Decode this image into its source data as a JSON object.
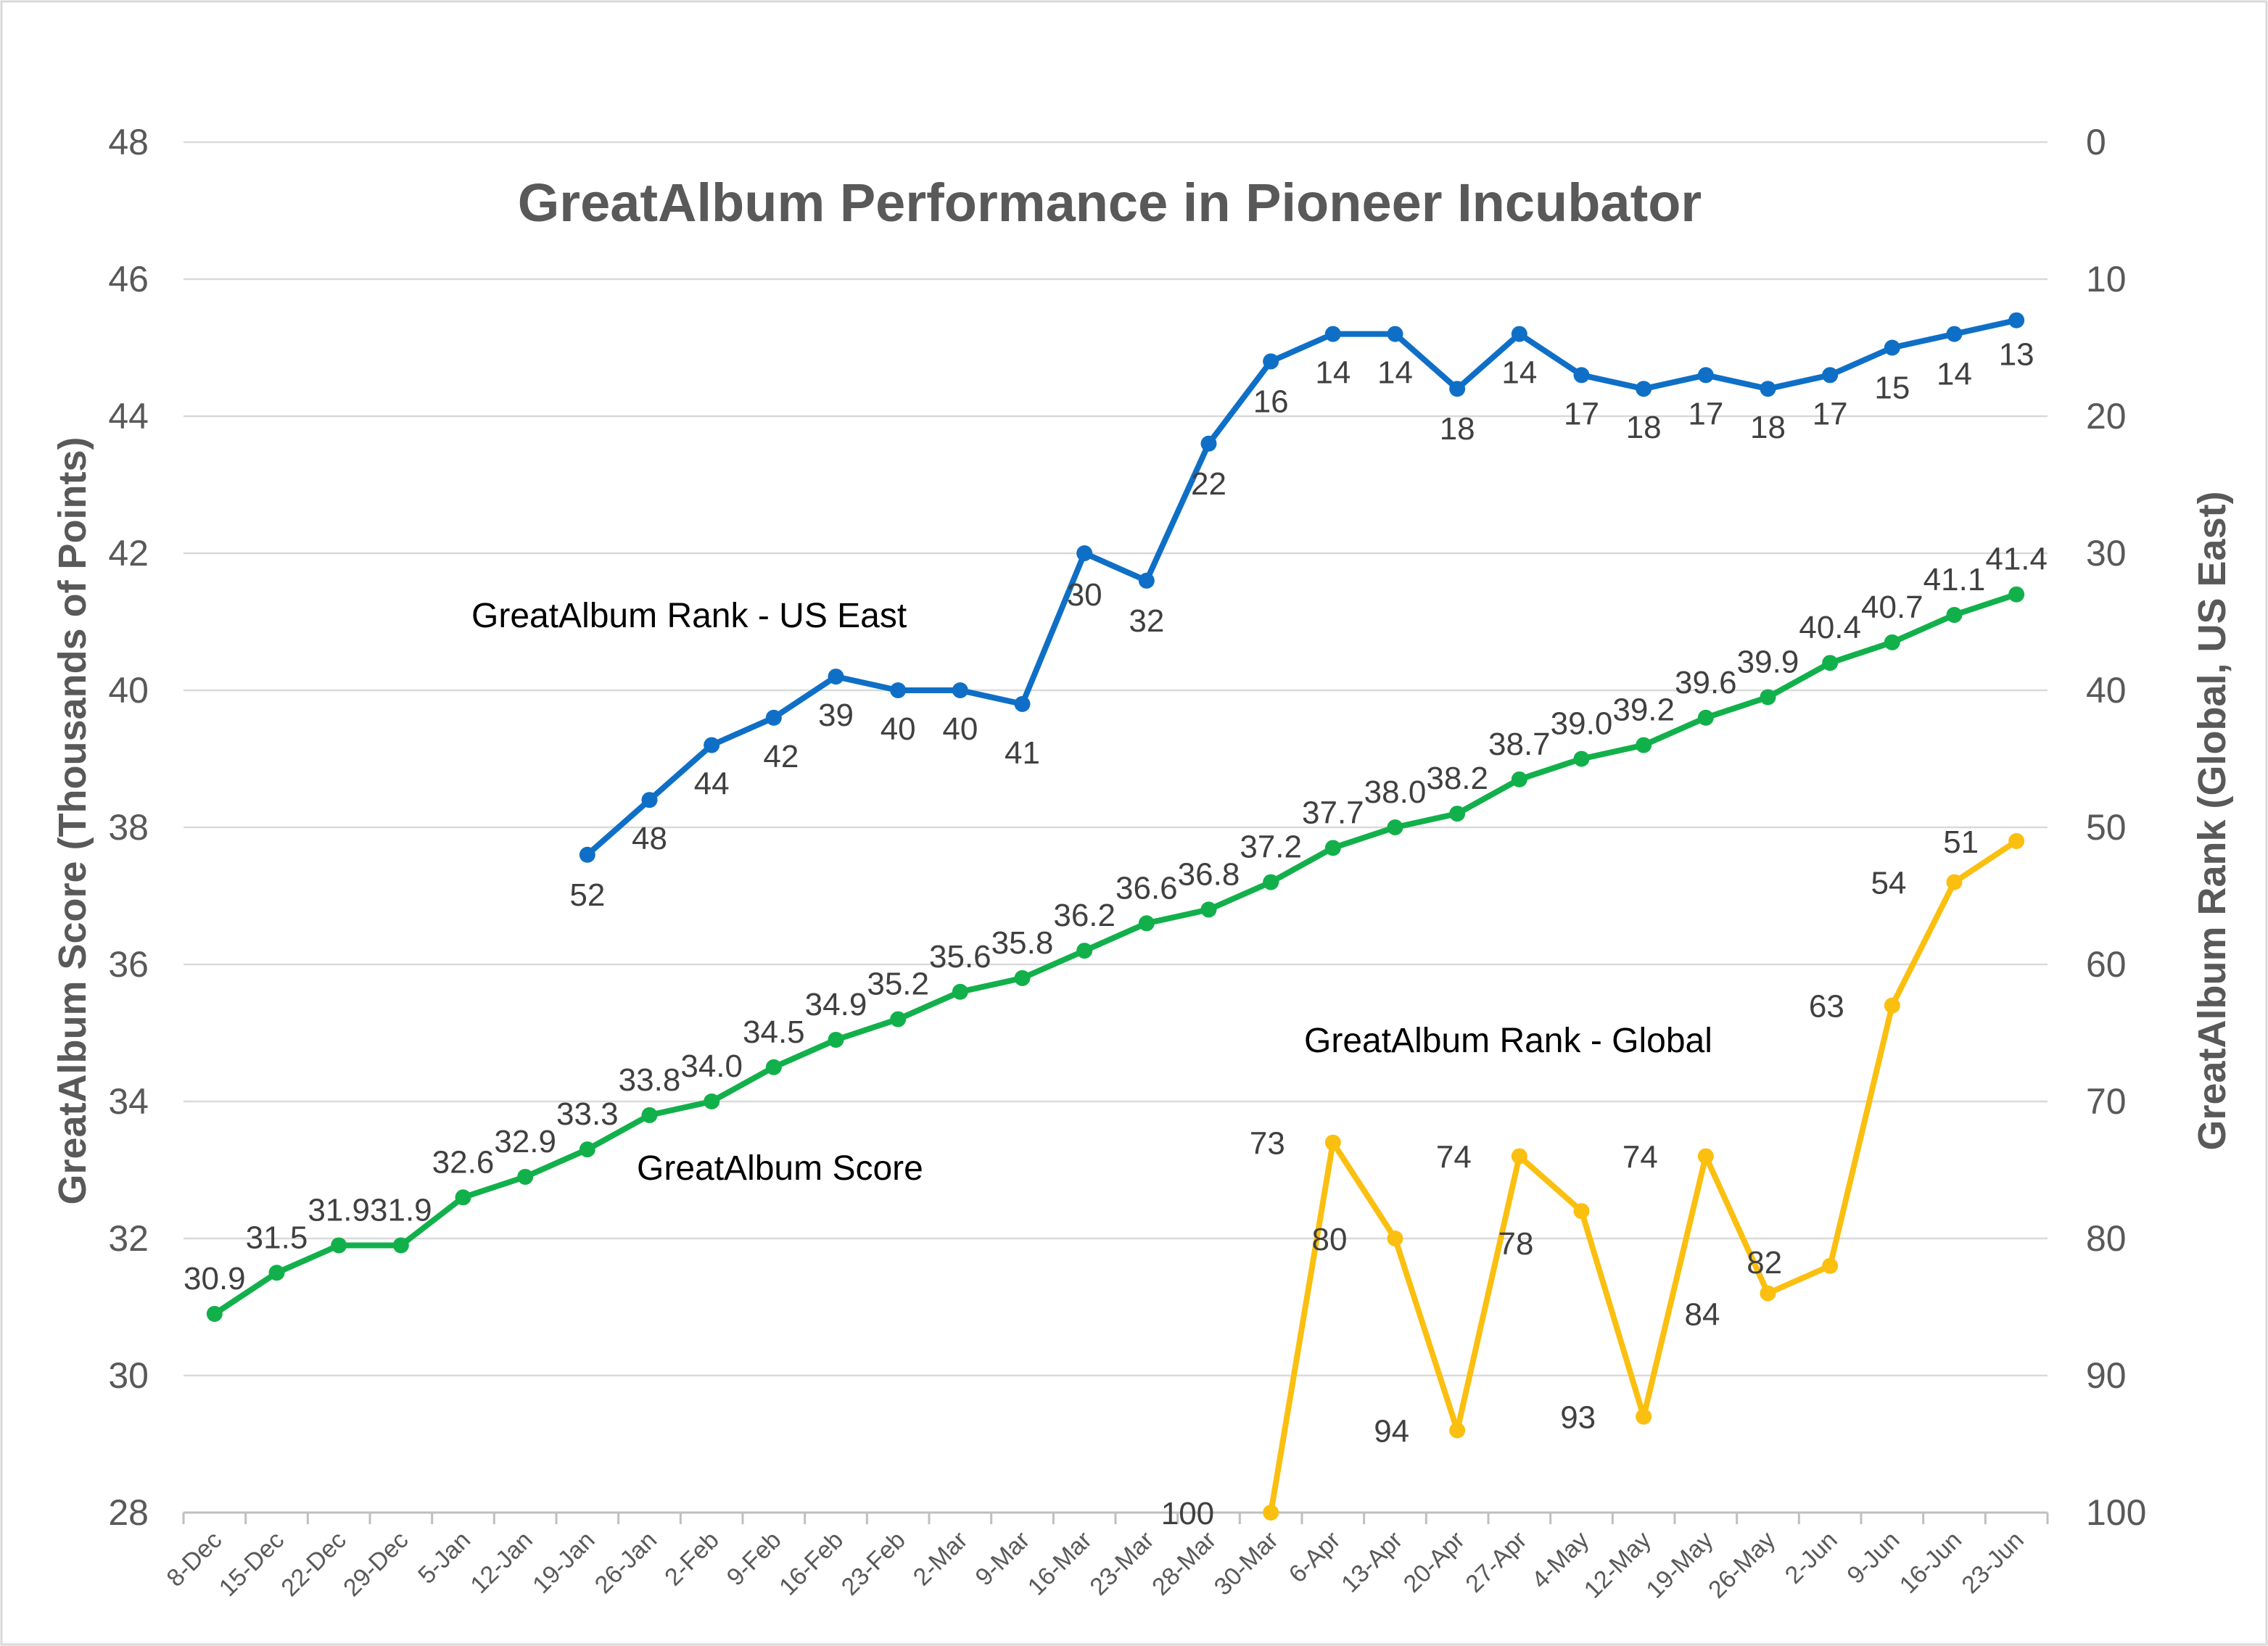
{
  "chart_data": {
    "type": "line",
    "title": "GreatAlbum Performance in Pioneer Incubator",
    "ylabel": "GreatAlbum Score (Thousands of Points)",
    "y2label": "GreatAlbum Rank (Global, US East)",
    "ylim": [
      28,
      48
    ],
    "y2lim": [
      0,
      100
    ],
    "y2_reversed": true,
    "yticks": [
      "28",
      "30",
      "32",
      "34",
      "36",
      "38",
      "40",
      "42",
      "44",
      "46",
      "48"
    ],
    "y2ticks": [
      "0",
      "10",
      "20",
      "30",
      "40",
      "50",
      "60",
      "70",
      "80",
      "90",
      "100"
    ],
    "grid": true,
    "categories": [
      "8-Dec",
      "15-Dec",
      "22-Dec",
      "29-Dec",
      "5-Jan",
      "12-Jan",
      "19-Jan",
      "26-Jan",
      "2-Feb",
      "9-Feb",
      "16-Feb",
      "23-Feb",
      "2-Mar",
      "9-Mar",
      "16-Mar",
      "23-Mar",
      "28-Mar",
      "30-Mar",
      "6-Apr",
      "13-Apr",
      "20-Apr",
      "27-Apr",
      "4-May",
      "12-May",
      "19-May",
      "26-May",
      "2-Jun",
      "9-Jun",
      "16-Jun",
      "23-Jun"
    ],
    "series": [
      {
        "name": "GreatAlbum Score",
        "axis": "left",
        "color": "#12b04b",
        "values": [
          30.9,
          31.5,
          31.9,
          31.9,
          32.6,
          32.9,
          33.3,
          33.8,
          34.0,
          34.5,
          34.9,
          35.2,
          35.6,
          35.8,
          36.2,
          36.6,
          36.8,
          37.2,
          37.7,
          38.0,
          38.2,
          38.7,
          39.0,
          39.2,
          39.6,
          39.9,
          40.4,
          40.7,
          41.1,
          41.4
        ],
        "labels": [
          "30.9",
          "31.5",
          "31.9",
          "31.9",
          "32.6",
          "32.9",
          "33.3",
          "33.8",
          "34.0",
          "34.5",
          "34.9",
          "35.2",
          "35.6",
          "35.8",
          "36.2",
          "36.6",
          "36.8",
          "37.2",
          "37.7",
          "38.0",
          "38.2",
          "38.7",
          "39.0",
          "39.2",
          "39.6",
          "39.9",
          "40.4",
          "40.7",
          "41.1",
          "41.4"
        ]
      },
      {
        "name": "GreatAlbum Rank - US East",
        "axis": "right",
        "color": "#0f6fc6",
        "values": [
          null,
          null,
          null,
          null,
          null,
          null,
          52,
          48,
          44,
          42,
          39,
          40,
          40,
          41,
          30,
          32,
          22,
          16,
          14,
          14,
          18,
          14,
          17,
          18,
          17,
          18,
          17,
          15,
          14,
          13
        ],
        "labels": [
          "",
          "",
          "",
          "",
          "",
          "",
          "52",
          "48",
          "44",
          "42",
          "39",
          "40",
          "40",
          "41",
          "30",
          "32",
          "22",
          "16",
          "14",
          "14",
          "18",
          "14",
          "17",
          "18",
          "17",
          "18",
          "17",
          "15",
          "14",
          "13"
        ]
      },
      {
        "name": "GreatAlbum Rank - Global",
        "axis": "right",
        "color": "#fbbf10",
        "values": [
          null,
          null,
          null,
          null,
          null,
          null,
          null,
          null,
          null,
          null,
          null,
          null,
          null,
          null,
          null,
          null,
          null,
          100,
          73,
          80,
          94,
          74,
          78,
          93,
          74,
          84,
          82,
          63,
          54,
          51
        ],
        "labels": [
          "",
          "",
          "",
          "",
          "",
          "",
          "",
          "",
          "",
          "",
          "",
          "",
          "",
          "",
          "",
          "",
          "",
          "100",
          "73",
          "80",
          "94",
          "74",
          "78",
          "93",
          "74",
          "84",
          "82",
          "63",
          "54",
          "51"
        ]
      }
    ]
  }
}
